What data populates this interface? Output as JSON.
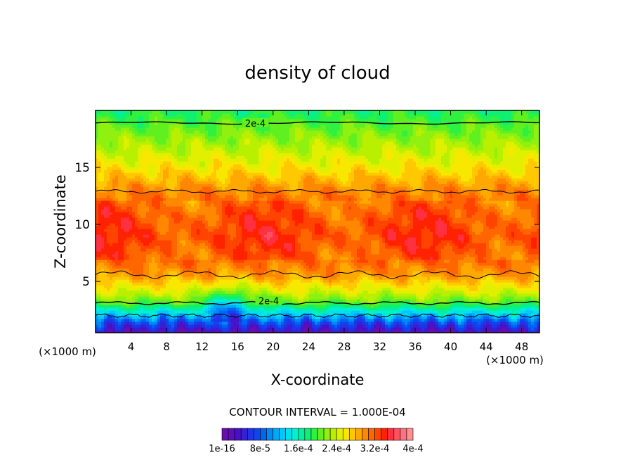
{
  "chart_data": {
    "type": "heatmap",
    "title": "density of cloud",
    "xlabel": "X-coordinate",
    "ylabel": "Z-coordinate",
    "x_unit": "(×1000 m)",
    "x_unit_right": "(×1000 m)",
    "xlim": [
      0,
      50
    ],
    "ylim": [
      0.5,
      20
    ],
    "x_ticks": [
      4,
      8,
      12,
      16,
      20,
      24,
      28,
      32,
      36,
      40,
      44,
      48
    ],
    "y_ticks": [
      5,
      10,
      15
    ],
    "contour_interval_label": "CONTOUR INTERVAL = 1.000E-04",
    "contour_labels": [
      {
        "text": "2e-4",
        "level": 0.0002,
        "x": 18,
        "z": 18.9
      },
      {
        "text": "2e-4",
        "level": 0.0002,
        "x": 19.5,
        "z": 3.3
      }
    ],
    "colorbar": {
      "min": 1e-16,
      "max": 0.0004,
      "tick_labels": [
        "1e-16",
        "8e-5",
        "1.6e-4",
        "2.4e-4",
        "3.2e-4",
        "4e-4"
      ],
      "colors": [
        "#6a0dad",
        "#5a0fb8",
        "#4a10c6",
        "#3322d4",
        "#2233e6",
        "#1144ee",
        "#0066f2",
        "#0088f6",
        "#00a8f8",
        "#00c8f8",
        "#00e0f0",
        "#00f0d0",
        "#00f0a0",
        "#10f070",
        "#30f040",
        "#60f020",
        "#90f010",
        "#b8f000",
        "#e0f000",
        "#f8e800",
        "#ffc800",
        "#ffa800",
        "#ff8800",
        "#ff6600",
        "#ff4400",
        "#ff2200",
        "#ff3040",
        "#ff5060",
        "#ff7080",
        "#ff9090"
      ]
    },
    "profile": [
      {
        "z": 0.5,
        "value": 2e-05
      },
      {
        "z": 1.5,
        "value": 8e-05
      },
      {
        "z": 2.0,
        "value": 0.00012
      },
      {
        "z": 2.7,
        "value": 0.00017
      },
      {
        "z": 3.1,
        "value": 0.0002
      },
      {
        "z": 4.0,
        "value": 0.00024
      },
      {
        "z": 5.5,
        "value": 0.00029
      },
      {
        "z": 7.0,
        "value": 0.000315
      },
      {
        "z": 9.0,
        "value": 0.00033
      },
      {
        "z": 11.0,
        "value": 0.00032
      },
      {
        "z": 13.0,
        "value": 0.0003
      },
      {
        "z": 15.0,
        "value": 0.00026
      },
      {
        "z": 17.0,
        "value": 0.00023
      },
      {
        "z": 19.0,
        "value": 0.0002
      },
      {
        "z": 20.0,
        "value": 0.000185
      }
    ],
    "grid": false,
    "legend_position": "bottom"
  }
}
